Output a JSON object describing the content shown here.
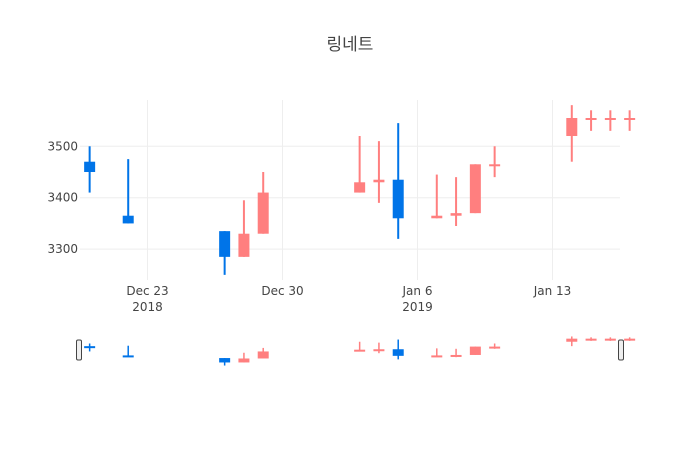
{
  "chart_data": {
    "type": "candlestick",
    "title": "링네트",
    "xlabel": "",
    "ylabel": "",
    "ylim": [
      3240,
      3590
    ],
    "y_ticks": [
      3300,
      3400,
      3500
    ],
    "x_ticks": [
      {
        "date": "2018-12-23",
        "line1": "Dec 23",
        "line2": "2018"
      },
      {
        "date": "2018-12-30",
        "line1": "Dec 30",
        "line2": ""
      },
      {
        "date": "2019-01-06",
        "line1": "Jan 6",
        "line2": "2019"
      },
      {
        "date": "2019-01-13",
        "line1": "Jan 13",
        "line2": ""
      }
    ],
    "x_range": [
      "2018-12-19T12:00",
      "2019-01-16T12:00"
    ],
    "grid": true,
    "rangeslider": true,
    "colors": {
      "increasing": "#ff7f7f",
      "decreasing": "#0074e8",
      "grid": "#eeeeee",
      "text": "#444444"
    },
    "candles": [
      {
        "date": "2018-12-20",
        "open": 3470,
        "high": 3500,
        "low": 3410,
        "close": 3450
      },
      {
        "date": "2018-12-22",
        "open": 3365,
        "high": 3475,
        "low": 3350,
        "close": 3350
      },
      {
        "date": "2018-12-27",
        "open": 3335,
        "high": 3335,
        "low": 3250,
        "close": 3285
      },
      {
        "date": "2018-12-28",
        "open": 3285,
        "high": 3395,
        "low": 3285,
        "close": 3330
      },
      {
        "date": "2018-12-29",
        "open": 3330,
        "high": 3450,
        "low": 3330,
        "close": 3410
      },
      {
        "date": "2019-01-03",
        "open": 3410,
        "high": 3520,
        "low": 3410,
        "close": 3430
      },
      {
        "date": "2019-01-04",
        "open": 3430,
        "high": 3510,
        "low": 3390,
        "close": 3435
      },
      {
        "date": "2019-01-05",
        "open": 3435,
        "high": 3545,
        "low": 3320,
        "close": 3360
      },
      {
        "date": "2019-01-07",
        "open": 3360,
        "high": 3445,
        "low": 3360,
        "close": 3365
      },
      {
        "date": "2019-01-08",
        "open": 3365,
        "high": 3440,
        "low": 3345,
        "close": 3370
      },
      {
        "date": "2019-01-09",
        "open": 3370,
        "high": 3465,
        "low": 3370,
        "close": 3465
      },
      {
        "date": "2019-01-10",
        "open": 3465,
        "high": 3500,
        "low": 3440,
        "close": 3465
      },
      {
        "date": "2019-01-14",
        "open": 3520,
        "high": 3580,
        "low": 3470,
        "close": 3555
      },
      {
        "date": "2019-01-15",
        "open": 3555,
        "high": 3570,
        "low": 3530,
        "close": 3555
      },
      {
        "date": "2019-01-16",
        "open": 3555,
        "high": 3570,
        "low": 3530,
        "close": 3555
      },
      {
        "date": "2019-01-17",
        "open": 3555,
        "high": 3570,
        "low": 3530,
        "close": 3555
      }
    ]
  }
}
